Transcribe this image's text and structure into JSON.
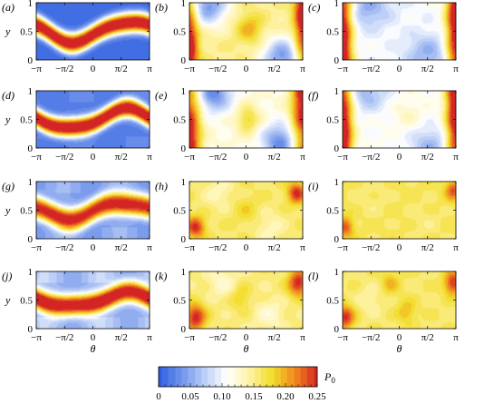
{
  "chart_data": {
    "type": "heatmap",
    "layout": {
      "rows": 4,
      "cols": 3
    },
    "xlim": [
      -3.14159,
      3.14159
    ],
    "ylim": [
      0,
      1
    ],
    "xticks": [
      "−π",
      "−π/2",
      "0",
      "π/2",
      "π"
    ],
    "yticks": [
      "0",
      "0.5",
      "1"
    ],
    "xlabel": "θ",
    "ylabel": "y",
    "colorbar": {
      "label": "P",
      "label_sub": "0",
      "range": [
        0,
        0.25
      ],
      "ticks": [
        "0",
        "0.05",
        "0.10",
        "0.15",
        "0.20",
        "0.25"
      ],
      "colors": [
        "#2f5fe0",
        "#6f92ea",
        "#b9cdf6",
        "#ffffff",
        "#fff3a8",
        "#f2dd2c",
        "#f28a1e",
        "#d42525"
      ]
    },
    "panels": [
      {
        "label": "(a)",
        "kind": "band",
        "amp": 0.18,
        "phase": -0.5,
        "width": 0.18,
        "peak": 0.27,
        "bg": 0.01,
        "bgAmp": 0.0,
        "seed": 1
      },
      {
        "label": "(b)",
        "kind": "field",
        "base": 0.15,
        "seed": 2,
        "spots": [
          [
            -3.14159,
            0.2,
            0.34,
            0.9,
            0.12
          ],
          [
            3.14159,
            0.85,
            0.34,
            0.9,
            0.12
          ],
          [
            -2.1,
            0.95,
            0.8,
            0.25,
            -0.11
          ],
          [
            2.0,
            0.05,
            0.8,
            0.25,
            -0.11
          ],
          [
            0.2,
            0.55,
            0.5,
            0.18,
            0.05
          ]
        ]
      },
      {
        "label": "(c)",
        "kind": "field",
        "base": 0.105,
        "seed": 3,
        "spots": [
          [
            -3.14159,
            0.3,
            0.4,
            1.2,
            0.17
          ],
          [
            3.14159,
            0.75,
            0.4,
            1.2,
            0.17
          ],
          [
            -1.7,
            0.9,
            0.9,
            0.25,
            -0.05
          ],
          [
            1.6,
            0.1,
            0.9,
            0.25,
            -0.05
          ]
        ]
      },
      {
        "label": "(d)",
        "kind": "band",
        "amp": 0.17,
        "phase": -0.3,
        "width": 0.17,
        "peak": 0.27,
        "bg": 0.02,
        "bgAmp": 0.01,
        "seed": 4
      },
      {
        "label": "(e)",
        "kind": "field",
        "base": 0.12,
        "seed": 5,
        "spots": [
          [
            -3.14159,
            0.15,
            0.45,
            0.9,
            0.14
          ],
          [
            3.14159,
            0.8,
            0.45,
            0.9,
            0.14
          ],
          [
            -1.8,
            0.95,
            0.7,
            0.22,
            -0.09
          ],
          [
            1.9,
            0.1,
            0.7,
            0.22,
            -0.09
          ],
          [
            0.1,
            0.5,
            0.45,
            0.18,
            0.06
          ]
        ]
      },
      {
        "label": "(f)",
        "kind": "field",
        "base": 0.11,
        "seed": 6,
        "spots": [
          [
            -3.14159,
            0.25,
            0.4,
            1.1,
            0.17
          ],
          [
            3.14159,
            0.8,
            0.4,
            1.1,
            0.17
          ],
          [
            -1.8,
            0.95,
            0.8,
            0.22,
            -0.05
          ],
          [
            1.7,
            0.05,
            0.8,
            0.22,
            -0.05
          ],
          [
            0.5,
            0.6,
            0.6,
            0.2,
            0.02
          ]
        ]
      },
      {
        "label": "(g)",
        "kind": "band",
        "amp": 0.14,
        "phase": -0.2,
        "width": 0.2,
        "peak": 0.25,
        "bg": 0.04,
        "bgAmp": 0.02,
        "seed": 7
      },
      {
        "label": "(h)",
        "kind": "field",
        "base": 0.16,
        "seed": 8,
        "spots": [
          [
            -2.8,
            0.2,
            0.35,
            0.13,
            0.09
          ],
          [
            2.8,
            0.8,
            0.35,
            0.13,
            0.09
          ],
          [
            -1.5,
            0.8,
            0.6,
            0.2,
            -0.025
          ],
          [
            1.3,
            0.2,
            0.6,
            0.2,
            -0.025
          ],
          [
            0.0,
            0.5,
            0.5,
            0.18,
            0.02
          ]
        ]
      },
      {
        "label": "(i)",
        "kind": "field",
        "base": 0.165,
        "seed": 9,
        "spots": [
          [
            -3.0,
            0.2,
            0.3,
            0.12,
            0.07
          ],
          [
            3.0,
            0.85,
            0.3,
            0.12,
            0.07
          ],
          [
            -1.5,
            0.7,
            0.7,
            0.25,
            -0.01
          ],
          [
            1.4,
            0.3,
            0.7,
            0.25,
            -0.01
          ]
        ]
      },
      {
        "label": "(j)",
        "kind": "band",
        "amp": 0.12,
        "phase": -0.4,
        "width": 0.19,
        "peak": 0.26,
        "bg": 0.05,
        "bgAmp": 0.03,
        "seed": 10
      },
      {
        "label": "(k)",
        "kind": "field",
        "base": 0.155,
        "seed": 11,
        "spots": [
          [
            -2.8,
            0.2,
            0.4,
            0.16,
            0.1
          ],
          [
            2.9,
            0.8,
            0.4,
            0.16,
            0.1
          ],
          [
            -1.3,
            0.8,
            0.55,
            0.18,
            -0.03
          ],
          [
            1.3,
            0.25,
            0.55,
            0.18,
            -0.03
          ],
          [
            -0.3,
            0.55,
            0.4,
            0.16,
            0.03
          ]
        ]
      },
      {
        "label": "(l)",
        "kind": "field",
        "base": 0.16,
        "seed": 12,
        "spots": [
          [
            -3.0,
            0.2,
            0.35,
            0.14,
            0.09
          ],
          [
            3.0,
            0.8,
            0.35,
            0.14,
            0.09
          ],
          [
            -0.5,
            0.8,
            0.35,
            0.14,
            0.035
          ],
          [
            0.4,
            0.3,
            0.35,
            0.14,
            0.035
          ],
          [
            -1.6,
            0.5,
            0.5,
            0.18,
            -0.02
          ]
        ]
      }
    ]
  }
}
